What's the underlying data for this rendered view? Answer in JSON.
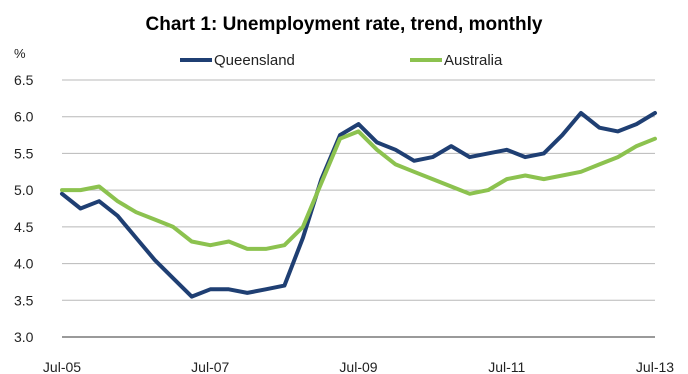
{
  "chart_data": {
    "type": "line",
    "title": "Chart 1: Unemployment rate, trend, monthly",
    "ylabel": "%",
    "xlabel": "",
    "ylim": [
      3.0,
      6.5
    ],
    "yticks": [
      "3.0",
      "3.5",
      "4.0",
      "4.5",
      "5.0",
      "5.5",
      "6.0",
      "6.5"
    ],
    "xticks": [
      "Jul-05",
      "Jul-07",
      "Jul-09",
      "Jul-11",
      "Jul-13"
    ],
    "grid": true,
    "legend": "top",
    "colors": {
      "Queensland": "#1f3f73",
      "Australia": "#8cc24f"
    },
    "x": [
      "Jul-05",
      "Oct-05",
      "Jan-06",
      "Apr-06",
      "Jul-06",
      "Oct-06",
      "Jan-07",
      "Apr-07",
      "Jul-07",
      "Oct-07",
      "Jan-08",
      "Apr-08",
      "Jul-08",
      "Oct-08",
      "Jan-09",
      "Apr-09",
      "Jul-09",
      "Oct-09",
      "Jan-10",
      "Apr-10",
      "Jul-10",
      "Oct-10",
      "Jan-11",
      "Apr-11",
      "Jul-11",
      "Oct-11",
      "Jan-12",
      "Apr-12",
      "Jul-12",
      "Oct-12",
      "Jan-13",
      "Apr-13",
      "Jul-13"
    ],
    "series": [
      {
        "name": "Queensland",
        "values": [
          4.95,
          4.75,
          4.85,
          4.65,
          4.35,
          4.05,
          3.8,
          3.55,
          3.65,
          3.65,
          3.6,
          3.65,
          3.7,
          4.35,
          5.15,
          5.75,
          5.9,
          5.65,
          5.55,
          5.4,
          5.45,
          5.6,
          5.45,
          5.5,
          5.55,
          5.45,
          5.5,
          5.75,
          6.05,
          5.85,
          5.8,
          5.9,
          6.05
        ]
      },
      {
        "name": "Australia",
        "values": [
          5.0,
          5.0,
          5.05,
          4.85,
          4.7,
          4.6,
          4.5,
          4.3,
          4.25,
          4.3,
          4.2,
          4.2,
          4.25,
          4.5,
          5.1,
          5.7,
          5.8,
          5.55,
          5.35,
          5.25,
          5.15,
          5.05,
          4.95,
          5.0,
          5.15,
          5.2,
          5.15,
          5.2,
          5.25,
          5.35,
          5.45,
          5.6,
          5.7
        ]
      }
    ]
  }
}
